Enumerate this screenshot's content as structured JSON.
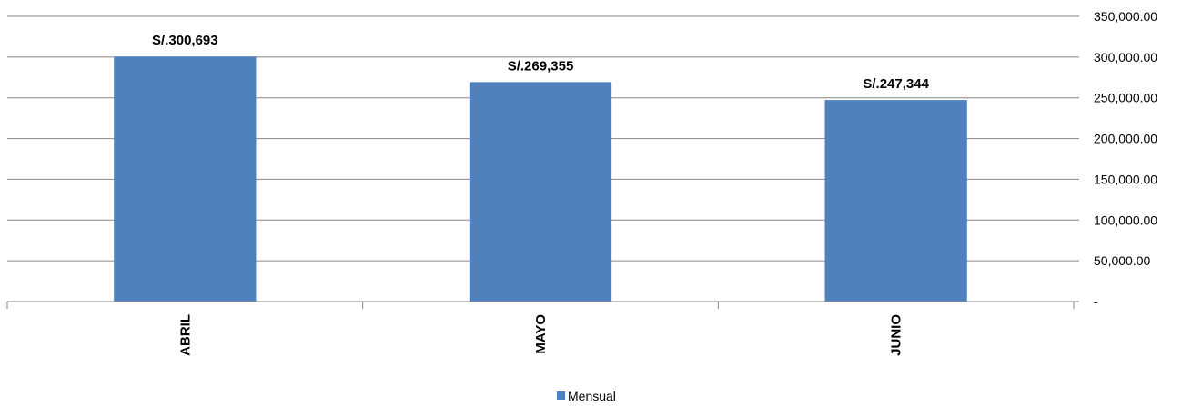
{
  "chart_data": {
    "type": "bar",
    "categories": [
      "ABRIL",
      "MAYO",
      "JUNIO"
    ],
    "series": [
      {
        "name": "Mensual",
        "values": [
          300693,
          269355,
          247344
        ],
        "color": "#4F81BD"
      }
    ],
    "data_labels": [
      "S/.300,693",
      "S/.269,355",
      "S/.247,344"
    ],
    "ylim": [
      0,
      350000
    ],
    "yticks": [
      0,
      50000,
      100000,
      150000,
      200000,
      250000,
      300000,
      350000
    ],
    "ytick_labels": [
      "-",
      "50,000.00",
      "100,000.00",
      "150,000.00",
      "200,000.00",
      "250,000.00",
      "300,000.00",
      "350,000.00"
    ],
    "y_axis_side": "right",
    "grid": true,
    "legend_position": "bottom",
    "title": "",
    "xlabel": "",
    "ylabel": ""
  }
}
